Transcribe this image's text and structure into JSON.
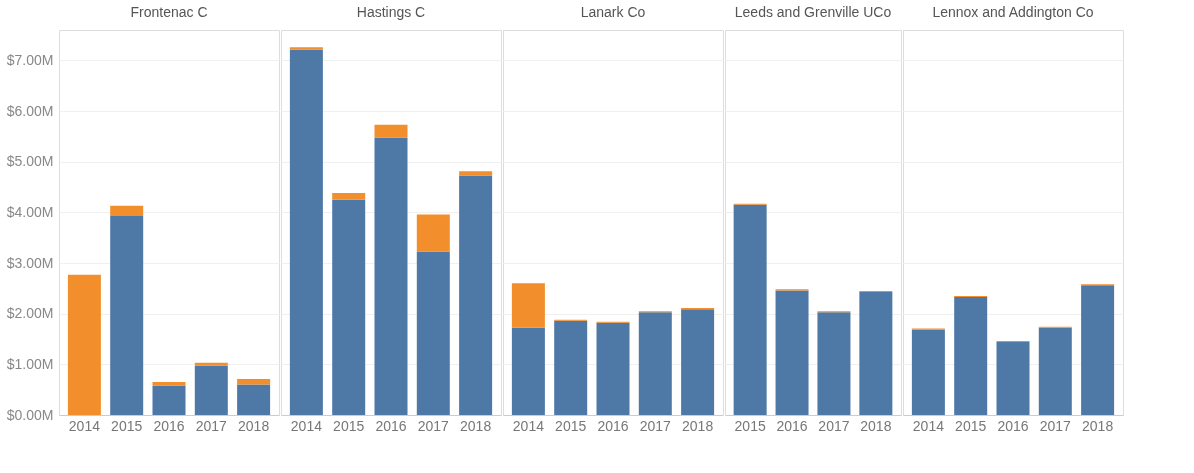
{
  "chart_data": [
    {
      "type": "bar",
      "title": "Frontenac C",
      "stacked": true,
      "grid": "y",
      "legend": false,
      "categories": [
        "2014",
        "2015",
        "2016",
        "2017",
        "2018"
      ],
      "ylim": [
        0,
        7.6
      ],
      "yticks": [
        {
          "value": 0,
          "label": "$0.00M"
        },
        {
          "value": 1,
          "label": "$1.00M"
        },
        {
          "value": 2,
          "label": "$2.00M"
        },
        {
          "value": 3,
          "label": "$3.00M"
        },
        {
          "value": 4,
          "label": "$4.00M"
        },
        {
          "value": 5,
          "label": "$5.00M"
        },
        {
          "value": 6,
          "label": "$6.00M"
        },
        {
          "value": 7,
          "label": "$7.00M"
        }
      ],
      "series": [
        {
          "color": "#4e79a7",
          "values": [
            0,
            3.93,
            0.58,
            0.97,
            0.6
          ]
        },
        {
          "color": "#f28e2b",
          "values": [
            2.77,
            0.2,
            0.07,
            0.06,
            0.11
          ]
        }
      ]
    },
    {
      "type": "bar",
      "title": "Hastings C",
      "stacked": true,
      "grid": "y",
      "legend": false,
      "tick_labels": "x",
      "categories": [
        "2014",
        "2015",
        "2016",
        "2017",
        "2018"
      ],
      "ylim": [
        0,
        7.6
      ],
      "series": [
        {
          "color": "#4e79a7",
          "values": [
            7.21,
            4.25,
            5.48,
            3.23,
            4.73
          ]
        },
        {
          "color": "#f28e2b",
          "values": [
            0.05,
            0.13,
            0.25,
            0.73,
            0.08
          ]
        }
      ]
    },
    {
      "type": "bar",
      "title": "Lanark Co",
      "stacked": true,
      "grid": "y",
      "legend": false,
      "tick_labels": "x",
      "categories": [
        "2014",
        "2015",
        "2016",
        "2017",
        "2018"
      ],
      "ylim": [
        0,
        7.6
      ],
      "series": [
        {
          "color": "#4e79a7",
          "values": [
            1.72,
            1.86,
            1.82,
            2.03,
            2.09
          ]
        },
        {
          "color": "#f28e2b",
          "values": [
            0.88,
            0.02,
            0.02,
            0.02,
            0.02
          ]
        }
      ]
    },
    {
      "type": "bar",
      "title": "Leeds and Grenville UCo",
      "stacked": true,
      "grid": "y",
      "legend": false,
      "tick_labels": "x",
      "categories": [
        "2015",
        "2016",
        "2017",
        "2018"
      ],
      "ylim": [
        0,
        7.6
      ],
      "series": [
        {
          "color": "#4e79a7",
          "values": [
            4.15,
            2.46,
            2.03,
            2.43
          ]
        },
        {
          "color": "#f28e2b",
          "values": [
            0.02,
            0.02,
            0.02,
            0.02
          ]
        }
      ]
    },
    {
      "type": "bar",
      "title": "Lennox and Addington Co",
      "stacked": true,
      "grid": "y",
      "legend": false,
      "tick_labels": "x",
      "categories": [
        "2014",
        "2015",
        "2016",
        "2017",
        "2018"
      ],
      "ylim": [
        0,
        7.6
      ],
      "series": [
        {
          "color": "#4e79a7",
          "values": [
            1.69,
            2.33,
            1.44,
            1.72,
            2.56
          ]
        },
        {
          "color": "#f28e2b",
          "values": [
            0.02,
            0.02,
            0.02,
            0.02,
            0.02
          ]
        }
      ]
    }
  ]
}
